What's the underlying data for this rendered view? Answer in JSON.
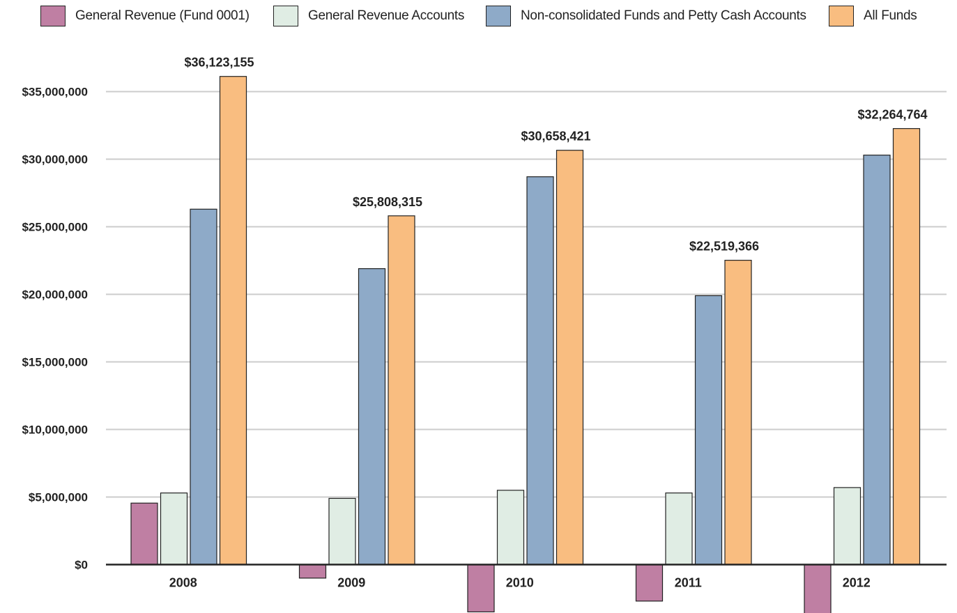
{
  "chart_data": {
    "type": "bar",
    "title": "",
    "xlabel": "",
    "ylabel": "",
    "categories": [
      "2008",
      "2009",
      "2010",
      "2011",
      "2012"
    ],
    "series": [
      {
        "name": "General Revenue (Fund 0001)",
        "color": "#bf7fa3",
        "values": [
          4550000,
          -1000000,
          -3500000,
          -2700000,
          -3700000
        ]
      },
      {
        "name": "General Revenue Accounts",
        "color": "#e0ede4",
        "values": [
          5300000,
          4900000,
          5500000,
          5300000,
          5700000
        ]
      },
      {
        "name": "Non-consolidated Funds and Petty Cash Accounts",
        "color": "#8eaac8",
        "values": [
          26300000,
          21900000,
          28700000,
          19900000,
          30300000
        ]
      },
      {
        "name": "All Funds",
        "color": "#f9bd80",
        "values": [
          36123155,
          25808315,
          30658421,
          22519366,
          32264764
        ]
      }
    ],
    "data_labels": [
      "$36,123,155",
      "$25,808,315",
      "$30,658,421",
      "$22,519,366",
      "$32,264,764"
    ],
    "ylim": [
      -3500000,
      36123155
    ],
    "yticks": [
      0,
      5000000,
      10000000,
      15000000,
      20000000,
      25000000,
      30000000,
      35000000
    ],
    "ytick_labels": [
      "$0",
      "$5,000,000",
      "$10,000,000",
      "$15,000,000",
      "$20,000,000",
      "$25,000,000",
      "$30,000,000",
      "$35,000,000"
    ],
    "grid": true,
    "legend_position": "top"
  }
}
